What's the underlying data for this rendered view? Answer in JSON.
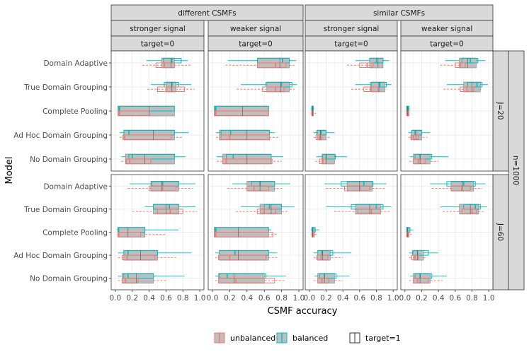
{
  "chart_data": {
    "type": "boxplot",
    "xlabel": "CSMF accuracy",
    "ylabel": "Model",
    "xlim": [
      0,
      1
    ],
    "x_ticks": [
      "0.0",
      "0.2",
      "0.4",
      "0.6",
      "0.8",
      "1.0"
    ],
    "col_facets": [
      {
        "label": "different CSMFs",
        "subs": [
          "stronger signal",
          "weaker signal"
        ]
      },
      {
        "label": "similar CSMFs",
        "subs": [
          "stronger signal",
          "weaker signal"
        ]
      }
    ],
    "target_strip": "target=0",
    "row_facets": [
      "J=20",
      "J=60"
    ],
    "outer_row_strip": "n=1000",
    "models": [
      "Domain Adaptive",
      "True Domain Grouping",
      "Complete Pooling",
      "Ad Hoc Domain Grouping",
      "No Domain Grouping"
    ],
    "legend": {
      "unbalanced": "unbalanced",
      "balanced": "balanced",
      "target1": "target=1"
    },
    "colors": {
      "unbalanced": "#F8766D",
      "balanced": "#00BFC4",
      "target1_fill": "#bebebe",
      "strip_bg": "#d9d9d9",
      "grid": "#ebebeb"
    },
    "panels": [
      {
        "row": "J=20",
        "col": "different CSMFs / stronger signal",
        "boxes": {
          "Domain Adaptive": {
            "t1": [
              0.55,
              0.66,
              0.7
            ],
            "bal": [
              0.37,
              0.57,
              0.67,
              0.78,
              0.86
            ],
            "unb": [
              0.32,
              0.48,
              0.58,
              0.7,
              0.9
            ]
          },
          "True Domain Grouping": {
            "t1": [
              0.6,
              0.67,
              0.72
            ],
            "bal": [
              0.42,
              0.58,
              0.67,
              0.75,
              0.9
            ],
            "unb": [
              0.38,
              0.5,
              0.6,
              0.82,
              0.94
            ]
          },
          "Complete Pooling": {
            "t1": [
              0.03,
              0.4,
              0.7
            ],
            "bal": [
              0.03,
              0.04,
              0.05,
              0.7,
              0.7
            ],
            "unb": [
              0.03,
              0.04,
              0.05,
              0.4,
              0.48
            ]
          },
          "Ad Hoc Domain Grouping": {
            "t1": [
              0.1,
              0.45,
              0.7
            ],
            "bal": [
              0.05,
              0.1,
              0.16,
              0.7,
              0.87
            ],
            "unb": [
              0.05,
              0.09,
              0.11,
              0.66,
              0.8
            ]
          },
          "No Domain Grouping": {
            "t1": [
              0.12,
              0.35,
              0.7
            ],
            "bal": [
              0.07,
              0.16,
              0.2,
              0.7,
              0.83
            ],
            "unb": [
              0.07,
              0.13,
              0.17,
              0.42,
              0.7
            ]
          }
        }
      },
      {
        "row": "J=20",
        "col": "different CSMFs / weaker signal",
        "boxes": {
          "Domain Adaptive": {
            "t1": [
              0.52,
              0.78,
              0.89
            ],
            "bal": [
              0.18,
              0.52,
              0.81,
              0.89,
              0.97
            ],
            "unb": [
              0.15,
              0.52,
              0.73,
              0.85,
              0.95
            ]
          },
          "True Domain Grouping": {
            "t1": [
              0.63,
              0.79,
              0.89
            ],
            "bal": [
              0.33,
              0.62,
              0.8,
              0.92,
              0.98
            ],
            "unb": [
              0.28,
              0.58,
              0.73,
              0.83,
              0.95
            ]
          },
          "Complete Pooling": {
            "t1": [
              0.02,
              0.35,
              0.65
            ],
            "bal": [
              0.02,
              0.03,
              0.04,
              0.65,
              0.65
            ],
            "unb": [
              0.02,
              0.03,
              0.04,
              0.65,
              0.65
            ]
          },
          "Ad Hoc Domain Grouping": {
            "t1": [
              0.08,
              0.4,
              0.66
            ],
            "bal": [
              0.04,
              0.1,
              0.21,
              0.66,
              0.72
            ],
            "unb": [
              0.04,
              0.1,
              0.2,
              0.66,
              0.78
            ]
          },
          "No Domain Grouping": {
            "t1": [
              0.12,
              0.4,
              0.68
            ],
            "bal": [
              0.05,
              0.16,
              0.24,
              0.68,
              0.82
            ],
            "unb": [
              0.05,
              0.12,
              0.16,
              0.69,
              0.8
            ]
          }
        }
      },
      {
        "row": "J=20",
        "col": "similar CSMFs / stronger signal",
        "boxes": {
          "Domain Adaptive": {
            "t1": [
              0.72,
              0.82,
              0.88
            ],
            "bal": [
              0.55,
              0.72,
              0.8,
              0.88,
              0.95
            ],
            "unb": [
              0.45,
              0.6,
              0.69,
              0.76,
              0.88
            ]
          },
          "True Domain Grouping": {
            "t1": [
              0.74,
              0.83,
              0.9
            ],
            "bal": [
              0.55,
              0.73,
              0.84,
              0.92,
              0.98
            ],
            "unb": [
              0.5,
              0.65,
              0.73,
              0.82,
              0.93
            ]
          },
          "Complete Pooling": {
            "t1": [
              0.03,
              0.04,
              0.05
            ],
            "bal": [
              0.02,
              0.03,
              0.03,
              0.04,
              0.06
            ],
            "unb": [
              0.02,
              0.03,
              0.03,
              0.04,
              0.08
            ]
          },
          "Ad Hoc Domain Grouping": {
            "t1": [
              0.1,
              0.13,
              0.2
            ],
            "bal": [
              0.05,
              0.09,
              0.14,
              0.2,
              0.3
            ],
            "unb": [
              0.05,
              0.08,
              0.12,
              0.15,
              0.25
            ]
          },
          "No Domain Grouping": {
            "t1": [
              0.15,
              0.2,
              0.3
            ],
            "bal": [
              0.08,
              0.16,
              0.2,
              0.31,
              0.45
            ],
            "unb": [
              0.07,
              0.12,
              0.16,
              0.2,
              0.32
            ]
          }
        }
      },
      {
        "row": "J=20",
        "col": "similar CSMFs / weaker signal",
        "boxes": {
          "Domain Adaptive": {
            "t1": [
              0.65,
              0.75,
              0.85
            ],
            "bal": [
              0.48,
              0.68,
              0.78,
              0.87,
              0.96
            ],
            "unb": [
              0.42,
              0.6,
              0.66,
              0.72,
              0.82
            ]
          },
          "True Domain Grouping": {
            "t1": [
              0.7,
              0.8,
              0.9
            ],
            "bal": [
              0.5,
              0.75,
              0.86,
              0.92,
              0.99
            ],
            "unb": [
              0.46,
              0.66,
              0.74,
              0.82,
              0.92
            ]
          },
          "Complete Pooling": {
            "t1": [
              0.02,
              0.03,
              0.05
            ],
            "bal": [
              0.02,
              0.02,
              0.03,
              0.04,
              0.06
            ],
            "unb": [
              0.02,
              0.02,
              0.03,
              0.04,
              0.06
            ]
          },
          "Ad Hoc Domain Grouping": {
            "t1": [
              0.08,
              0.13,
              0.2
            ],
            "bal": [
              0.04,
              0.08,
              0.12,
              0.2,
              0.3
            ],
            "unb": [
              0.04,
              0.07,
              0.1,
              0.16,
              0.27
            ]
          },
          "No Domain Grouping": {
            "t1": [
              0.1,
              0.18,
              0.3
            ],
            "bal": [
              0.06,
              0.12,
              0.18,
              0.32,
              0.52
            ],
            "unb": [
              0.05,
              0.1,
              0.16,
              0.24,
              0.4
            ]
          }
        }
      },
      {
        "row": "J=60",
        "col": "different CSMFs / stronger signal",
        "boxes": {
          "Domain Adaptive": {
            "t1": [
              0.42,
              0.55,
              0.75
            ],
            "bal": [
              0.17,
              0.43,
              0.56,
              0.75,
              0.95
            ],
            "unb": [
              0.15,
              0.4,
              0.56,
              0.72,
              0.92
            ]
          },
          "True Domain Grouping": {
            "t1": [
              0.45,
              0.6,
              0.75
            ],
            "bal": [
              0.35,
              0.45,
              0.64,
              0.75,
              0.95
            ],
            "unb": [
              0.2,
              0.5,
              0.65,
              0.8,
              0.97
            ]
          },
          "Complete Pooling": {
            "t1": [
              0.03,
              0.15,
              0.35
            ],
            "bal": [
              0.02,
              0.03,
              0.04,
              0.35,
              0.75
            ],
            "unb": [
              0.02,
              0.03,
              0.04,
              0.3,
              0.6
            ]
          },
          "Ad Hoc Domain Grouping": {
            "t1": [
              0.1,
              0.3,
              0.5
            ],
            "bal": [
              0.03,
              0.1,
              0.15,
              0.5,
              0.9
            ],
            "unb": [
              0.03,
              0.08,
              0.14,
              0.47,
              0.72
            ]
          },
          "No Domain Grouping": {
            "t1": [
              0.08,
              0.25,
              0.45
            ],
            "bal": [
              0.03,
              0.1,
              0.15,
              0.45,
              0.82
            ],
            "unb": [
              0.03,
              0.08,
              0.12,
              0.27,
              0.6
            ]
          }
        }
      },
      {
        "row": "J=60",
        "col": "different CSMFs / weaker signal",
        "boxes": {
          "Domain Adaptive": {
            "t1": [
              0.4,
              0.55,
              0.72
            ],
            "bal": [
              0.23,
              0.45,
              0.55,
              0.72,
              0.9
            ],
            "unb": [
              0.17,
              0.4,
              0.48,
              0.65,
              0.82
            ]
          },
          "True Domain Grouping": {
            "t1": [
              0.55,
              0.68,
              0.8
            ],
            "bal": [
              0.33,
              0.6,
              0.66,
              0.8,
              0.95
            ],
            "unb": [
              0.27,
              0.52,
              0.6,
              0.73,
              0.88
            ]
          },
          "Complete Pooling": {
            "t1": [
              0.02,
              0.3,
              0.65
            ],
            "bal": [
              0.02,
              0.03,
              0.04,
              0.65,
              0.68
            ],
            "unb": [
              0.02,
              0.03,
              0.04,
              0.7,
              0.75
            ]
          },
          "Ad Hoc Domain Grouping": {
            "t1": [
              0.08,
              0.3,
              0.65
            ],
            "bal": [
              0.03,
              0.08,
              0.26,
              0.65,
              0.75
            ],
            "unb": [
              0.03,
              0.07,
              0.2,
              0.62,
              0.75
            ]
          },
          "No Domain Grouping": {
            "t1": [
              0.07,
              0.25,
              0.6
            ],
            "bal": [
              0.03,
              0.08,
              0.17,
              0.62,
              0.85
            ],
            "unb": [
              0.03,
              0.07,
              0.27,
              0.72,
              0.85
            ]
          }
        }
      },
      {
        "row": "J=60",
        "col": "similar CSMFs / stronger signal",
        "boxes": {
          "Domain Adaptive": {
            "t1": [
              0.45,
              0.6,
              0.75
            ],
            "bal": [
              0.18,
              0.38,
              0.65,
              0.76,
              0.92
            ],
            "unb": [
              0.2,
              0.42,
              0.6,
              0.72,
              0.9
            ]
          },
          "True Domain Grouping": {
            "t1": [
              0.55,
              0.72,
              0.85
            ],
            "bal": [
              0.2,
              0.5,
              0.8,
              0.88,
              0.98
            ],
            "unb": [
              0.3,
              0.58,
              0.74,
              0.85,
              0.98
            ]
          },
          "Complete Pooling": {
            "t1": [
              0.03,
              0.04,
              0.06
            ],
            "bal": [
              0.02,
              0.03,
              0.04,
              0.07,
              0.12
            ],
            "unb": [
              0.02,
              0.03,
              0.04,
              0.05,
              0.1
            ]
          },
          "Ad Hoc Domain Grouping": {
            "t1": [
              0.1,
              0.16,
              0.25
            ],
            "bal": [
              0.05,
              0.1,
              0.15,
              0.28,
              0.5
            ],
            "unb": [
              0.05,
              0.09,
              0.14,
              0.22,
              0.4
            ]
          },
          "No Domain Grouping": {
            "t1": [
              0.1,
              0.18,
              0.3
            ],
            "bal": [
              0.06,
              0.12,
              0.18,
              0.32,
              0.48
            ],
            "unb": [
              0.05,
              0.1,
              0.15,
              0.23,
              0.4
            ]
          }
        }
      },
      {
        "row": "J=60",
        "col": "similar CSMFs / weaker signal",
        "boxes": {
          "Domain Adaptive": {
            "t1": [
              0.55,
              0.68,
              0.82
            ],
            "bal": [
              0.3,
              0.5,
              0.7,
              0.84,
              0.96
            ],
            "unb": [
              0.32,
              0.55,
              0.68,
              0.78,
              0.92
            ]
          },
          "True Domain Grouping": {
            "t1": [
              0.65,
              0.78,
              0.88
            ],
            "bal": [
              0.42,
              0.7,
              0.84,
              0.9,
              0.98
            ],
            "unb": [
              0.45,
              0.68,
              0.8,
              0.85,
              0.95
            ]
          },
          "Complete Pooling": {
            "t1": [
              0.02,
              0.03,
              0.05
            ],
            "bal": [
              0.02,
              0.02,
              0.03,
              0.06,
              0.1
            ],
            "unb": [
              0.02,
              0.02,
              0.03,
              0.04,
              0.08
            ]
          },
          "Ad Hoc Domain Grouping": {
            "t1": [
              0.1,
              0.15,
              0.22
            ],
            "bal": [
              0.05,
              0.09,
              0.15,
              0.28,
              0.4
            ],
            "unb": [
              0.05,
              0.08,
              0.12,
              0.16,
              0.25
            ]
          },
          "No Domain Grouping": {
            "t1": [
              0.1,
              0.18,
              0.3
            ],
            "bal": [
              0.06,
              0.12,
              0.18,
              0.32,
              0.5
            ],
            "unb": [
              0.05,
              0.1,
              0.15,
              0.28,
              0.45
            ]
          }
        }
      }
    ]
  }
}
